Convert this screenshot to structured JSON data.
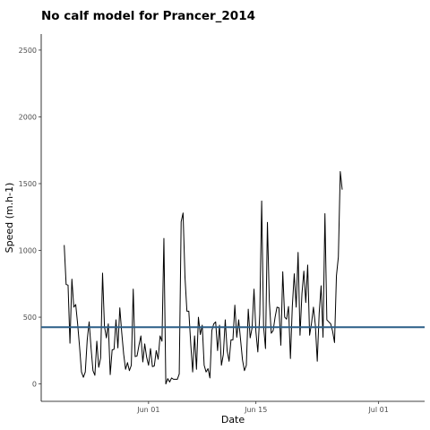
{
  "chart_data": {
    "type": "line",
    "title": "No calf model for Prancer_2014",
    "xlabel": "Date",
    "ylabel": "Speed (m.h-1)",
    "x_start": "2014-05-21",
    "x_step_days": 0.25,
    "xlim": [
      "2014-05-18",
      "2014-07-07"
    ],
    "ylim": [
      -130,
      2620
    ],
    "x_ticks": [
      {
        "date": "2014-06-01",
        "label": "Jun 01"
      },
      {
        "date": "2014-06-15",
        "label": "Jun 15"
      },
      {
        "date": "2014-07-01",
        "label": "Jul 01"
      }
    ],
    "y_ticks": [
      {
        "value": 0,
        "label": "0"
      },
      {
        "value": 500,
        "label": "500"
      },
      {
        "value": 1000,
        "label": "1000"
      },
      {
        "value": 1500,
        "label": "1500"
      },
      {
        "value": 2000,
        "label": "2000"
      },
      {
        "value": 2500,
        "label": "2500"
      }
    ],
    "grid": false,
    "series": [
      {
        "name": "",
        "color": "#000000",
        "values": [
          1040,
          745,
          740,
          305,
          785,
          575,
          595,
          450,
          280,
          90,
          50,
          90,
          330,
          465,
          270,
          100,
          65,
          320,
          125,
          195,
          830,
          430,
          345,
          450,
          70,
          255,
          260,
          480,
          270,
          570,
          385,
          225,
          110,
          160,
          100,
          140,
          710,
          205,
          210,
          290,
          360,
          165,
          300,
          200,
          140,
          265,
          130,
          135,
          250,
          185,
          360,
          320,
          1090,
          0,
          40,
          15,
          45,
          35,
          35,
          35,
          75,
          1215,
          1280,
          800,
          545,
          545,
          300,
          90,
          360,
          110,
          500,
          370,
          440,
          140,
          90,
          115,
          45,
          400,
          450,
          465,
          250,
          440,
          140,
          220,
          480,
          250,
          170,
          330,
          330,
          590,
          350,
          480,
          330,
          180,
          100,
          140,
          560,
          345,
          420,
          710,
          390,
          240,
          520,
          1370,
          430,
          265,
          1210,
          620,
          380,
          400,
          500,
          575,
          570,
          290,
          840,
          500,
          485,
          580,
          190,
          585,
          825,
          575,
          985,
          365,
          675,
          845,
          610,
          890,
          365,
          455,
          575,
          440,
          170,
          530,
          735,
          350,
          1275,
          480,
          465,
          450,
          395,
          310,
          810,
          950,
          1590,
          1455
        ],
        "line_width": 1
      }
    ],
    "reference_line": {
      "type": "hline",
      "value": 425,
      "color": "#2c5f88"
    }
  }
}
